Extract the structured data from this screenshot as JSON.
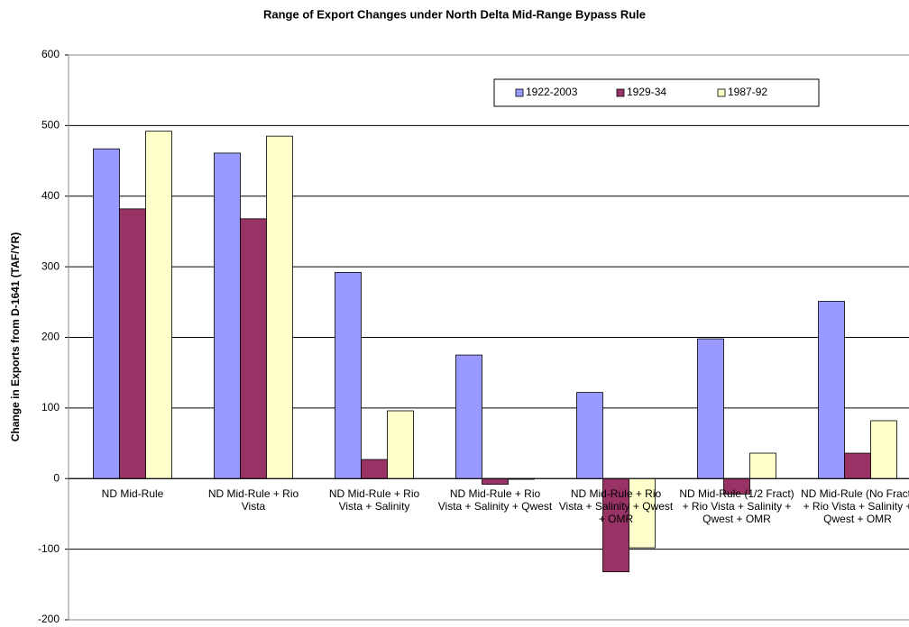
{
  "chart_data": {
    "type": "bar",
    "title": "Range of Export Changes under North Delta Mid-Range Bypass Rule",
    "y_label": "Change in Exports from D-1641 (TAF/YR)",
    "categories": [
      "ND Mid-Rule",
      "ND Mid-Rule + Rio Vista",
      "ND Mid-Rule + Rio Vista + Salinity",
      "ND Mid-Rule + Rio Vista + Salinity + Qwest",
      "ND Mid-Rule + Rio Vista + Salinity + Qwest + OMR",
      "ND Mid-Rule (1/2 Fract) + Rio Vista + Salinity + Qwest + OMR",
      "ND Mid-Rule (No Fract) + Rio Vista + Salinity + Qwest + OMR"
    ],
    "series": [
      {
        "name": "1922-2003",
        "color": "#9999ff",
        "values": [
          467,
          461,
          292,
          175,
          122,
          198,
          251
        ]
      },
      {
        "name": "1929-34",
        "color": "#993366",
        "values": [
          382,
          368,
          27,
          -8,
          -132,
          -22,
          36
        ]
      },
      {
        "name": "1987-92",
        "color": "#ffffcc",
        "values": [
          492,
          485,
          96,
          -1,
          -98,
          36,
          82
        ]
      }
    ],
    "ylim": [
      -200,
      600
    ],
    "yticks": [
      -200,
      -100,
      0,
      100,
      200,
      300,
      400,
      500,
      600
    ],
    "grid": true,
    "legend": "top-right"
  }
}
